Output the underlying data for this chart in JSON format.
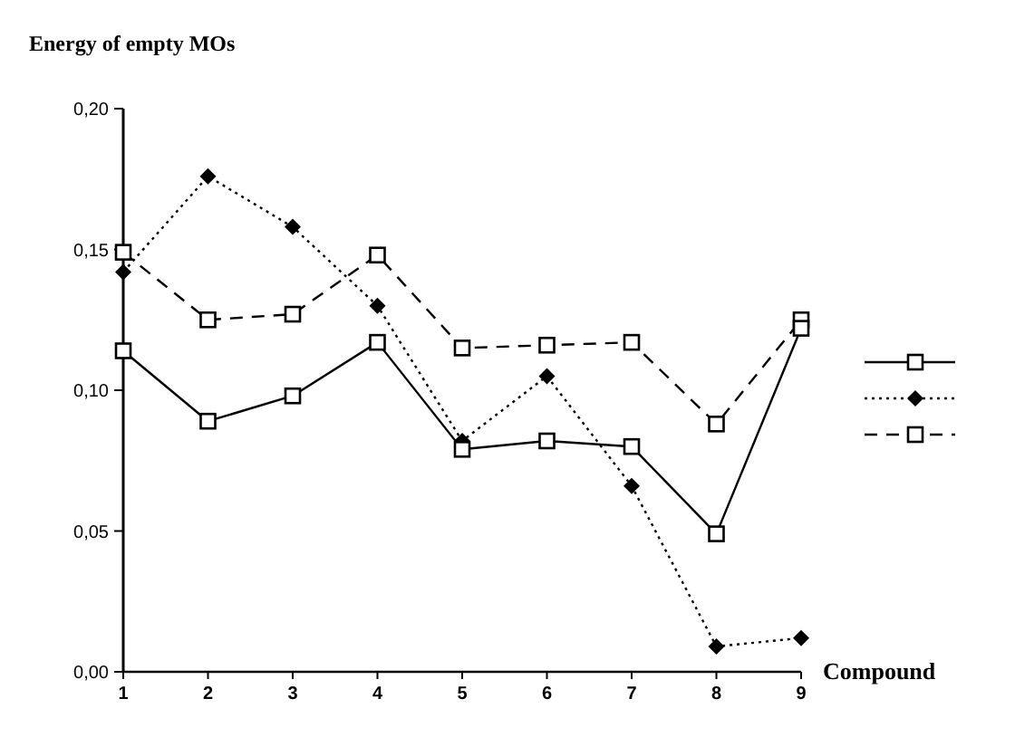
{
  "chart_data": {
    "type": "line",
    "title": "Energy of empty MOs",
    "xlabel": "Compound",
    "x": [
      1,
      2,
      3,
      4,
      5,
      6,
      7,
      8,
      9
    ],
    "xlim": [
      1,
      9
    ],
    "xticks": [
      1,
      2,
      3,
      4,
      5,
      6,
      7,
      8,
      9
    ],
    "ylim": [
      0,
      0.2
    ],
    "yticks": [
      {
        "value": 0,
        "label": "0,00"
      },
      {
        "value": 0.05,
        "label": "0,05"
      },
      {
        "value": 0.1,
        "label": "0,10"
      },
      {
        "value": 0.15,
        "label": "0,15"
      },
      {
        "value": 0.2,
        "label": "0,20"
      }
    ],
    "grid": false,
    "series": [
      {
        "color": "#000000",
        "marker": "square",
        "line_style": "solid",
        "values": [
          0.114,
          0.089,
          0.098,
          0.117,
          0.079,
          0.082,
          0.08,
          0.049,
          0.122
        ]
      },
      {
        "color": "#000000",
        "marker": "diamond",
        "line_style": "dotted",
        "values": [
          0.142,
          0.176,
          0.158,
          0.13,
          0.082,
          0.105,
          0.066,
          0.009,
          0.012
        ]
      },
      {
        "color": "#000000",
        "marker": "square",
        "line_style": "dashed",
        "values": [
          0.149,
          0.125,
          0.127,
          0.148,
          0.115,
          0.116,
          0.117,
          0.088,
          0.125
        ]
      }
    ]
  }
}
